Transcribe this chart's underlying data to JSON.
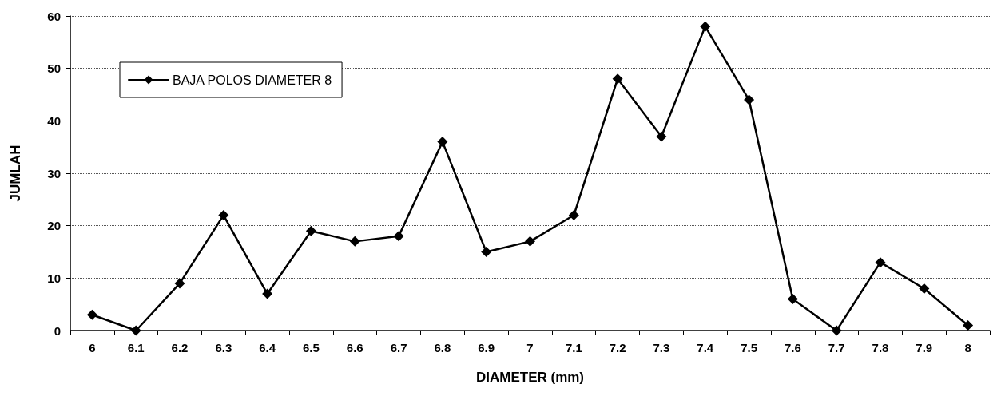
{
  "chart_data": {
    "type": "line",
    "xlabel": "DIAMETER (mm)",
    "ylabel": "JUMLAH",
    "categories": [
      "6",
      "6.1",
      "6.2",
      "6.3",
      "6.4",
      "6.5",
      "6.6",
      "6.7",
      "6.8",
      "6.9",
      "7",
      "7.1",
      "7.2",
      "7.3",
      "7.4",
      "7.5",
      "7.6",
      "7.7",
      "7.8",
      "7.9",
      "8"
    ],
    "series": [
      {
        "name": "BAJA POLOS DIAMETER 8",
        "color": "#000000",
        "values": [
          3,
          0,
          9,
          22,
          7,
          19,
          17,
          18,
          36,
          15,
          17,
          22,
          48,
          37,
          58,
          44,
          6,
          0,
          13,
          8,
          1
        ]
      }
    ],
    "ylim": [
      0,
      60
    ],
    "yticks": [
      0,
      10,
      20,
      30,
      40,
      50,
      60
    ],
    "grid": "y",
    "legend": "top left",
    "marker": "diamond",
    "line_style": "solid"
  }
}
